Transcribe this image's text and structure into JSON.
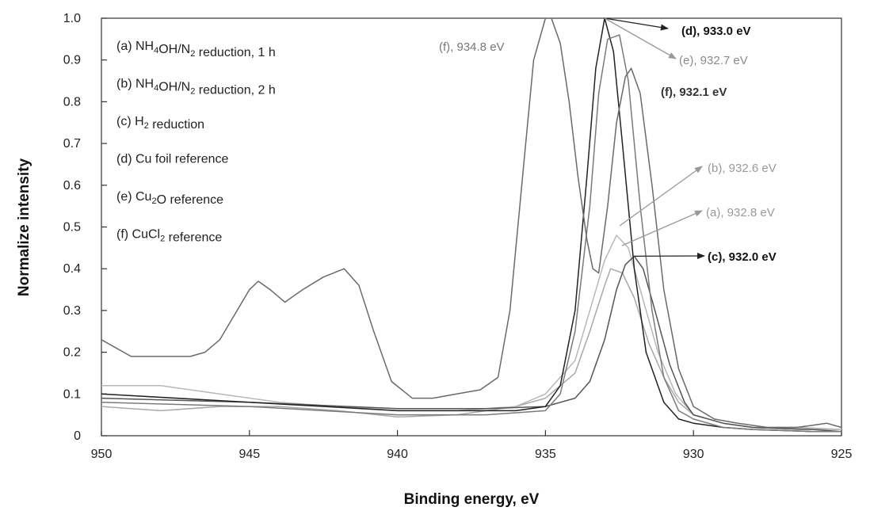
{
  "chart_data": {
    "type": "line",
    "xlabel": "Binding energy, eV",
    "ylabel": "Normalize intensity",
    "xlim": [
      950,
      925
    ],
    "ylim": [
      0,
      1.0
    ],
    "x_reversed": true,
    "x_ticks": [
      "950",
      "945",
      "940",
      "935",
      "930",
      "925"
    ],
    "y_ticks": [
      "0",
      "0.1",
      "0.2",
      "0.3",
      "0.4",
      "0.5",
      "0.6",
      "0.7",
      "0.8",
      "0.9",
      "1.0"
    ],
    "legend": [
      {
        "prefix": "(a) NH",
        "sub1": "4",
        "mid": "OH/N",
        "sub2": "2",
        "suffix": " reduction, 1 h"
      },
      {
        "prefix": "(b) NH",
        "sub1": "4",
        "mid": "OH/N",
        "sub2": "2",
        "suffix": " reduction, 2 h"
      },
      {
        "prefix": "(c) H",
        "sub1": "2",
        "mid": " reduction",
        "sub2": "",
        "suffix": ""
      },
      {
        "prefix": "(d) Cu foil reference",
        "sub1": "",
        "mid": "",
        "sub2": "",
        "suffix": ""
      },
      {
        "prefix": "(e) Cu",
        "sub1": "2",
        "mid": "O reference",
        "sub2": "",
        "suffix": ""
      },
      {
        "prefix": "(f) CuCl",
        "sub1": "2",
        "mid": " reference",
        "sub2": "",
        "suffix": ""
      }
    ],
    "annotations": [
      {
        "text": "(d), 933.0 eV",
        "color": "#111111",
        "bold": true
      },
      {
        "text": "(e), 932.7 eV",
        "color": "#8a8a8a",
        "bold": false
      },
      {
        "text": "(f), 932.1 eV",
        "color": "#333333",
        "bold": true
      },
      {
        "text": "(f), 934.8 eV",
        "color": "#777777",
        "bold": false
      },
      {
        "text": "(b), 932.6 eV",
        "color": "#999999",
        "bold": false
      },
      {
        "text": "(a), 932.8 eV",
        "color": "#9a9a9a",
        "bold": false
      },
      {
        "text": "(c), 932.0 eV",
        "color": "#111111",
        "bold": true
      }
    ],
    "series": [
      {
        "label": "a",
        "color": "#a8a8a8",
        "x": [
          950,
          948,
          946,
          944,
          942,
          940,
          938,
          936,
          935,
          934,
          933.5,
          933,
          932.8,
          932.4,
          932,
          931.5,
          931,
          930.5,
          930,
          929,
          928,
          926.5,
          925
        ],
        "y": [
          0.07,
          0.06,
          0.07,
          0.07,
          0.06,
          0.045,
          0.05,
          0.07,
          0.09,
          0.15,
          0.25,
          0.36,
          0.4,
          0.39,
          0.33,
          0.22,
          0.14,
          0.08,
          0.05,
          0.03,
          0.02,
          0.02,
          0.015
        ]
      },
      {
        "label": "b",
        "color": "#b8b8b8",
        "x": [
          950,
          948,
          946,
          944,
          942,
          940,
          938,
          936,
          935,
          934,
          933.5,
          933,
          932.6,
          932.2,
          931.8,
          931.2,
          930.6,
          930,
          929,
          928,
          926.5,
          925
        ],
        "y": [
          0.12,
          0.12,
          0.1,
          0.08,
          0.07,
          0.06,
          0.06,
          0.07,
          0.1,
          0.18,
          0.3,
          0.42,
          0.48,
          0.45,
          0.35,
          0.2,
          0.1,
          0.05,
          0.03,
          0.02,
          0.015,
          0.015
        ]
      },
      {
        "label": "c",
        "color": "#555555",
        "x": [
          950,
          945,
          940,
          937,
          935,
          934,
          933.5,
          933,
          932.6,
          932.3,
          932,
          931.7,
          931.3,
          930.8,
          930.3,
          930,
          929,
          928,
          926,
          925
        ],
        "y": [
          0.09,
          0.08,
          0.065,
          0.065,
          0.07,
          0.09,
          0.13,
          0.23,
          0.35,
          0.41,
          0.43,
          0.4,
          0.3,
          0.17,
          0.08,
          0.05,
          0.03,
          0.02,
          0.015,
          0.01
        ]
      },
      {
        "label": "d",
        "color": "#222222",
        "x": [
          950,
          945,
          940,
          938,
          936,
          935,
          934.5,
          934,
          933.6,
          933.3,
          933,
          932.7,
          932.4,
          932,
          931.6,
          931,
          930.5,
          930,
          929,
          928,
          926,
          925
        ],
        "y": [
          0.1,
          0.08,
          0.06,
          0.06,
          0.06,
          0.07,
          0.12,
          0.3,
          0.62,
          0.88,
          1.0,
          0.92,
          0.7,
          0.4,
          0.2,
          0.08,
          0.04,
          0.03,
          0.02,
          0.015,
          0.01,
          0.01
        ]
      },
      {
        "label": "e",
        "color": "#7a7a7a",
        "x": [
          950,
          945,
          940,
          937,
          935,
          934.5,
          934,
          933.5,
          933.2,
          932.9,
          932.5,
          932.2,
          931.8,
          931.4,
          931,
          930.5,
          930,
          929,
          928,
          926,
          925
        ],
        "y": [
          0.08,
          0.07,
          0.05,
          0.05,
          0.06,
          0.1,
          0.25,
          0.55,
          0.82,
          0.95,
          0.96,
          0.85,
          0.55,
          0.3,
          0.14,
          0.06,
          0.04,
          0.02,
          0.015,
          0.01,
          0.01
        ]
      },
      {
        "label": "f",
        "color": "#6a6a6a",
        "x": [
          950,
          949,
          948,
          947,
          946.5,
          946,
          945.5,
          945,
          944.7,
          944.3,
          943.8,
          943.2,
          942.5,
          941.8,
          941.3,
          940.8,
          940.2,
          939.5,
          938.8,
          938,
          937.2,
          936.6,
          936.2,
          935.8,
          935.4,
          935,
          934.8,
          934.5,
          934.2,
          933.9,
          933.6,
          933.4,
          933.2,
          932.9,
          932.6,
          932.3,
          932.1,
          931.8,
          931.4,
          931,
          930.5,
          930,
          929.3,
          928.5,
          927.5,
          926.5,
          925.5,
          925
        ],
        "y": [
          0.23,
          0.19,
          0.19,
          0.19,
          0.2,
          0.23,
          0.29,
          0.35,
          0.37,
          0.35,
          0.32,
          0.35,
          0.38,
          0.4,
          0.36,
          0.25,
          0.13,
          0.09,
          0.09,
          0.1,
          0.11,
          0.14,
          0.3,
          0.6,
          0.9,
          1.0,
          1.0,
          0.94,
          0.8,
          0.62,
          0.47,
          0.4,
          0.39,
          0.55,
          0.75,
          0.86,
          0.88,
          0.82,
          0.6,
          0.35,
          0.16,
          0.07,
          0.04,
          0.03,
          0.02,
          0.02,
          0.03,
          0.02
        ]
      }
    ]
  }
}
